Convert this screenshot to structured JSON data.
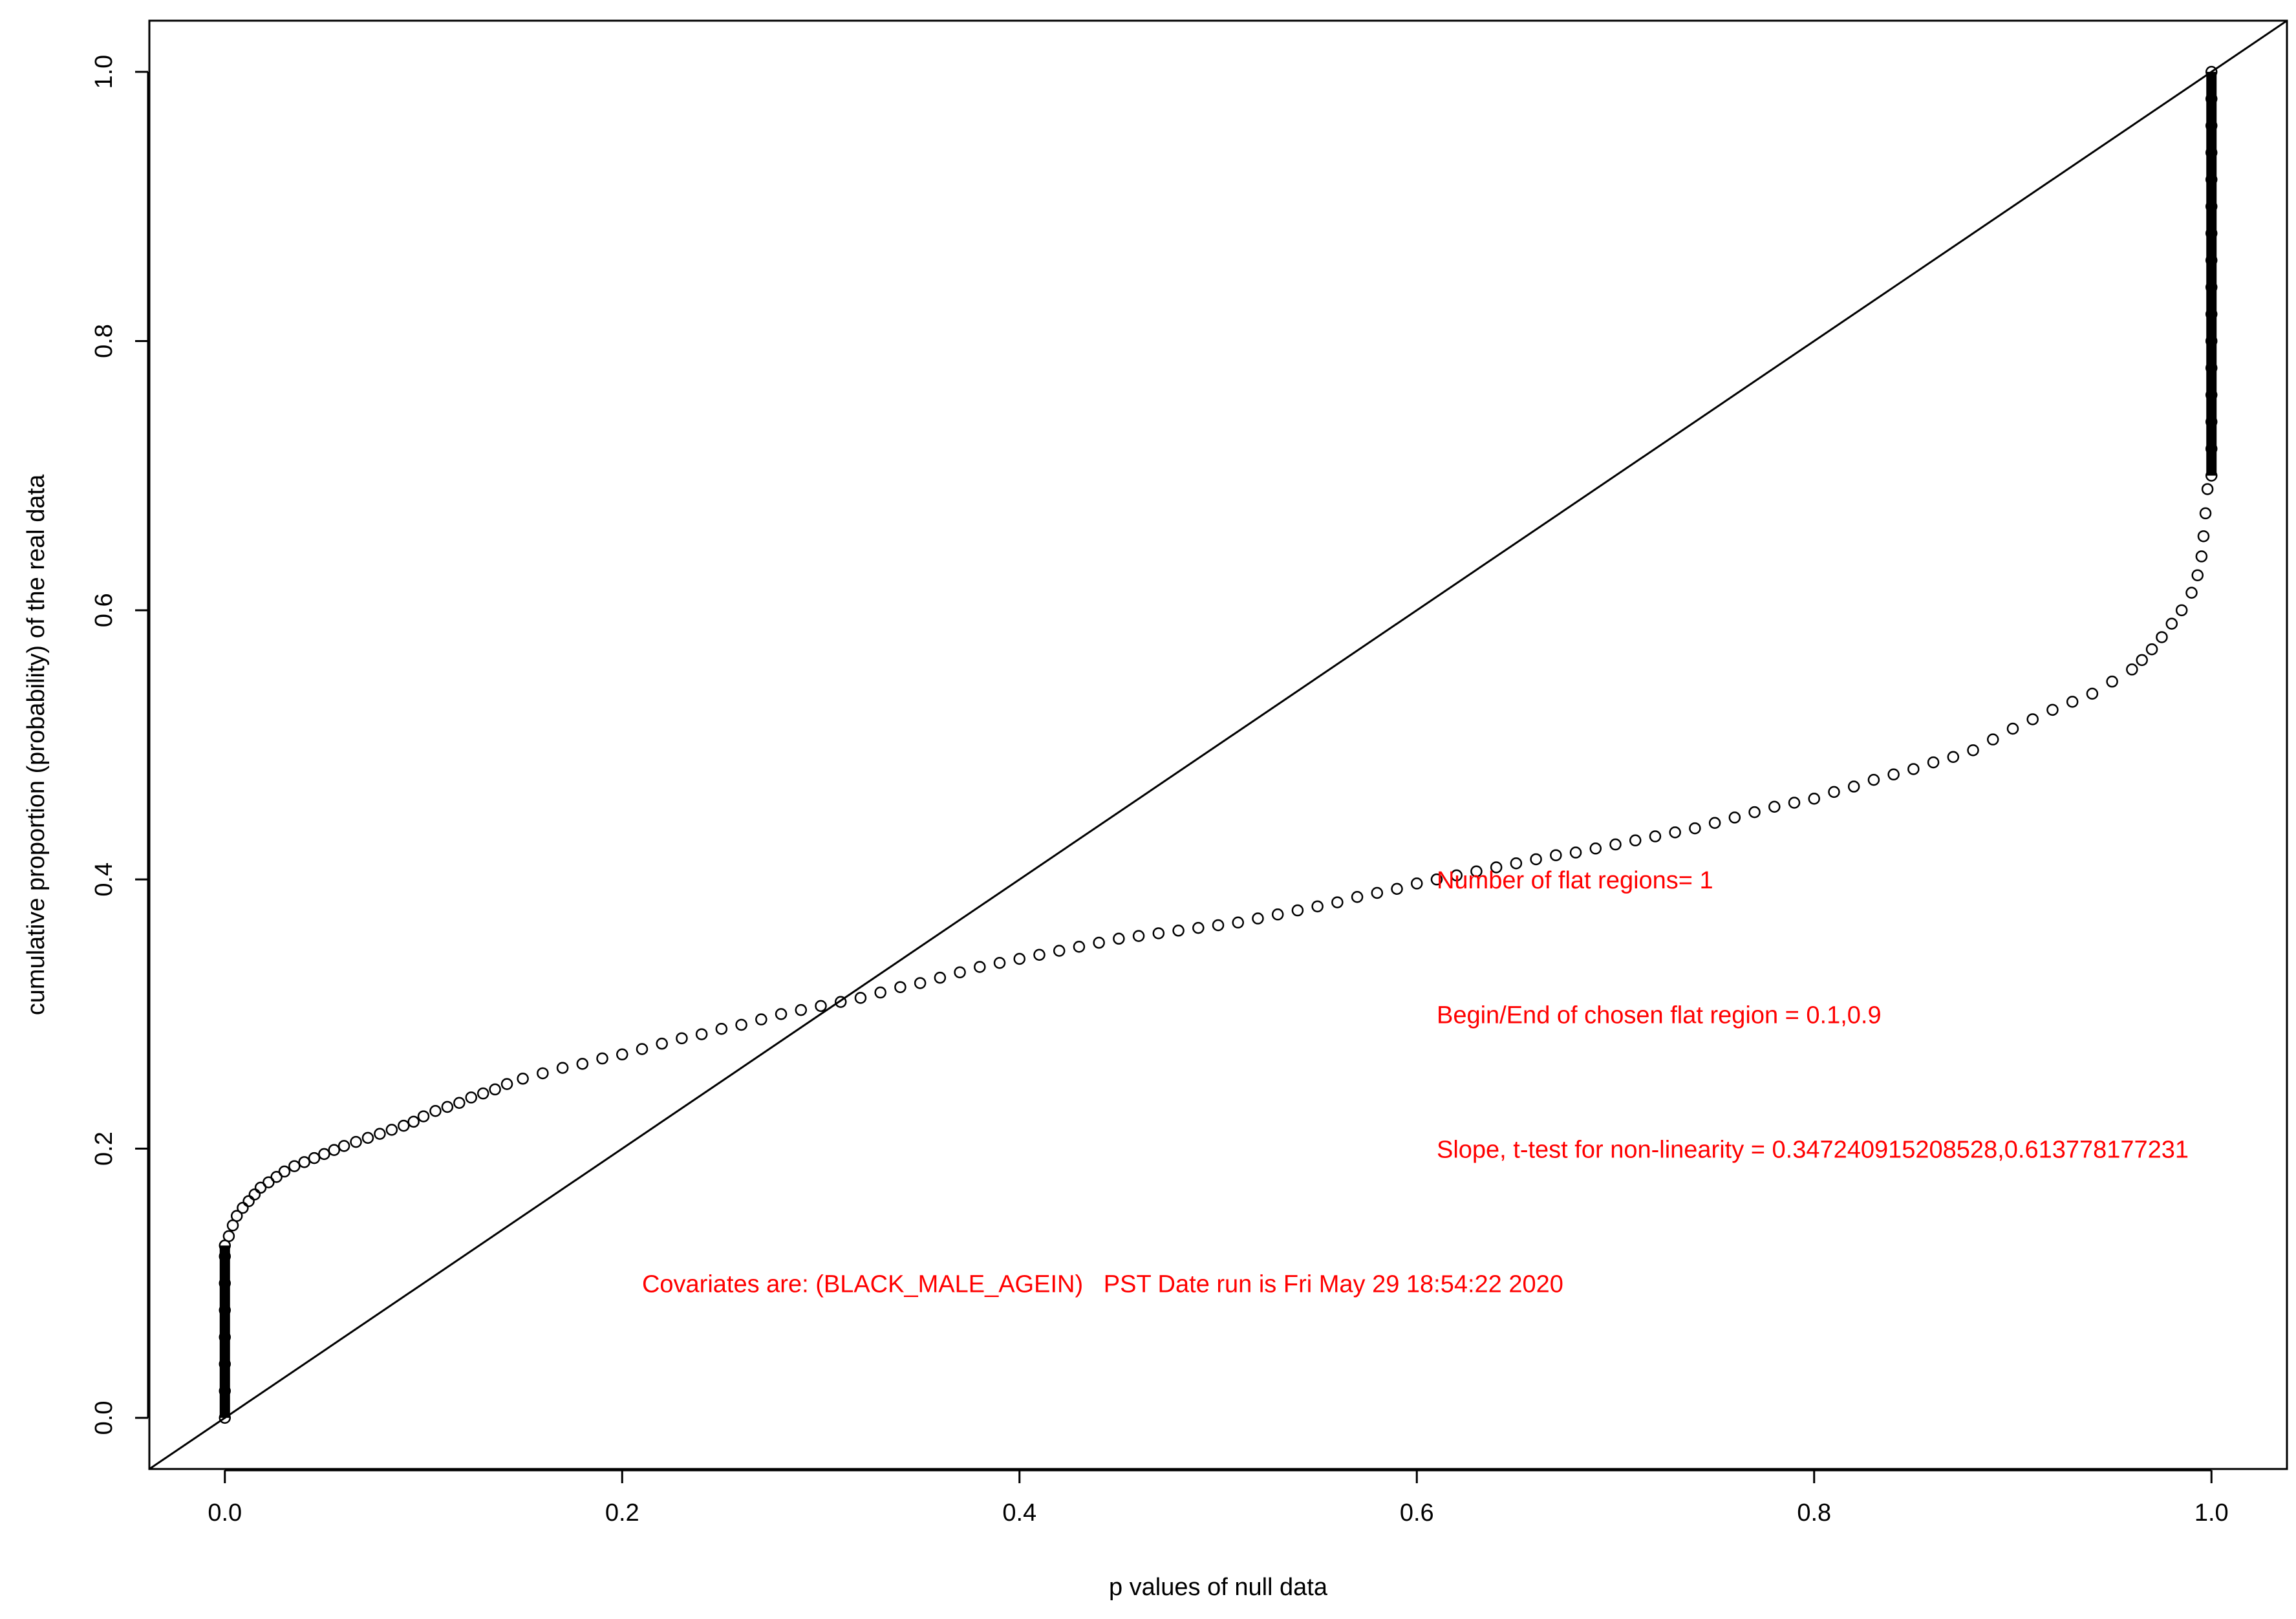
{
  "chart_data": {
    "type": "scatter",
    "title": "",
    "xlabel": "p values of null data",
    "ylabel": "cumulative proportion (probability) of the real data",
    "xlim": [
      -0.038,
      1.038
    ],
    "ylim": [
      -0.038,
      1.038
    ],
    "x_ticks": [
      "0.0",
      "0.2",
      "0.4",
      "0.6",
      "0.8",
      "1.0"
    ],
    "y_ticks": [
      "0.0",
      "0.2",
      "0.4",
      "0.6",
      "0.8",
      "1.0"
    ],
    "grid": false,
    "reference_line": {
      "from": [
        0,
        0
      ],
      "to": [
        1,
        1
      ]
    },
    "series": [
      {
        "points": [
          [
            0.0,
            0.0
          ],
          [
            0.0,
            0.02
          ],
          [
            0.0,
            0.04
          ],
          [
            0.0,
            0.06
          ],
          [
            0.0,
            0.08
          ],
          [
            0.0,
            0.1
          ],
          [
            0.0,
            0.12
          ],
          [
            0.0,
            0.128
          ],
          [
            0.002,
            0.135
          ],
          [
            0.004,
            0.143
          ],
          [
            0.006,
            0.15
          ],
          [
            0.009,
            0.156
          ],
          [
            0.012,
            0.161
          ],
          [
            0.015,
            0.166
          ],
          [
            0.018,
            0.171
          ],
          [
            0.022,
            0.175
          ],
          [
            0.026,
            0.179
          ],
          [
            0.03,
            0.183
          ],
          [
            0.035,
            0.187
          ],
          [
            0.04,
            0.19
          ],
          [
            0.045,
            0.193
          ],
          [
            0.05,
            0.196
          ],
          [
            0.055,
            0.199
          ],
          [
            0.06,
            0.202
          ],
          [
            0.066,
            0.205
          ],
          [
            0.072,
            0.208
          ],
          [
            0.078,
            0.211
          ],
          [
            0.084,
            0.214
          ],
          [
            0.09,
            0.217
          ],
          [
            0.095,
            0.22
          ],
          [
            0.1,
            0.224
          ],
          [
            0.106,
            0.228
          ],
          [
            0.112,
            0.231
          ],
          [
            0.118,
            0.234
          ],
          [
            0.124,
            0.238
          ],
          [
            0.13,
            0.241
          ],
          [
            0.136,
            0.244
          ],
          [
            0.142,
            0.248
          ],
          [
            0.15,
            0.252
          ],
          [
            0.16,
            0.256
          ],
          [
            0.17,
            0.26
          ],
          [
            0.18,
            0.263
          ],
          [
            0.19,
            0.267
          ],
          [
            0.2,
            0.27
          ],
          [
            0.21,
            0.274
          ],
          [
            0.22,
            0.278
          ],
          [
            0.23,
            0.282
          ],
          [
            0.24,
            0.285
          ],
          [
            0.25,
            0.289
          ],
          [
            0.26,
            0.292
          ],
          [
            0.27,
            0.296
          ],
          [
            0.28,
            0.3
          ],
          [
            0.29,
            0.303
          ],
          [
            0.3,
            0.306
          ],
          [
            0.31,
            0.309
          ],
          [
            0.32,
            0.312
          ],
          [
            0.33,
            0.316
          ],
          [
            0.34,
            0.32
          ],
          [
            0.35,
            0.323
          ],
          [
            0.36,
            0.327
          ],
          [
            0.37,
            0.331
          ],
          [
            0.38,
            0.335
          ],
          [
            0.39,
            0.338
          ],
          [
            0.4,
            0.341
          ],
          [
            0.41,
            0.344
          ],
          [
            0.42,
            0.347
          ],
          [
            0.43,
            0.35
          ],
          [
            0.44,
            0.353
          ],
          [
            0.45,
            0.356
          ],
          [
            0.46,
            0.358
          ],
          [
            0.47,
            0.36
          ],
          [
            0.48,
            0.362
          ],
          [
            0.49,
            0.364
          ],
          [
            0.5,
            0.366
          ],
          [
            0.51,
            0.368
          ],
          [
            0.52,
            0.371
          ],
          [
            0.53,
            0.374
          ],
          [
            0.54,
            0.377
          ],
          [
            0.55,
            0.38
          ],
          [
            0.56,
            0.383
          ],
          [
            0.57,
            0.387
          ],
          [
            0.58,
            0.39
          ],
          [
            0.59,
            0.393
          ],
          [
            0.6,
            0.397
          ],
          [
            0.61,
            0.4
          ],
          [
            0.62,
            0.403
          ],
          [
            0.63,
            0.406
          ],
          [
            0.64,
            0.409
          ],
          [
            0.65,
            0.412
          ],
          [
            0.66,
            0.415
          ],
          [
            0.67,
            0.418
          ],
          [
            0.68,
            0.42
          ],
          [
            0.69,
            0.423
          ],
          [
            0.7,
            0.426
          ],
          [
            0.71,
            0.429
          ],
          [
            0.72,
            0.432
          ],
          [
            0.73,
            0.435
          ],
          [
            0.74,
            0.438
          ],
          [
            0.75,
            0.442
          ],
          [
            0.76,
            0.446
          ],
          [
            0.77,
            0.45
          ],
          [
            0.78,
            0.454
          ],
          [
            0.79,
            0.457
          ],
          [
            0.8,
            0.46
          ],
          [
            0.81,
            0.465
          ],
          [
            0.82,
            0.469
          ],
          [
            0.83,
            0.474
          ],
          [
            0.84,
            0.478
          ],
          [
            0.85,
            0.482
          ],
          [
            0.86,
            0.487
          ],
          [
            0.87,
            0.491
          ],
          [
            0.88,
            0.496
          ],
          [
            0.89,
            0.504
          ],
          [
            0.9,
            0.512
          ],
          [
            0.91,
            0.519
          ],
          [
            0.92,
            0.526
          ],
          [
            0.93,
            0.532
          ],
          [
            0.94,
            0.538
          ],
          [
            0.95,
            0.547
          ],
          [
            0.96,
            0.556
          ],
          [
            0.965,
            0.563
          ],
          [
            0.97,
            0.571
          ],
          [
            0.975,
            0.58
          ],
          [
            0.98,
            0.59
          ],
          [
            0.985,
            0.6
          ],
          [
            0.99,
            0.613
          ],
          [
            0.993,
            0.626
          ],
          [
            0.995,
            0.64
          ],
          [
            0.996,
            0.655
          ],
          [
            0.997,
            0.672
          ],
          [
            0.998,
            0.69
          ],
          [
            1.0,
            0.7
          ],
          [
            1.0,
            0.72
          ],
          [
            1.0,
            0.74
          ],
          [
            1.0,
            0.76
          ],
          [
            1.0,
            0.78
          ],
          [
            1.0,
            0.8
          ],
          [
            1.0,
            0.82
          ],
          [
            1.0,
            0.84
          ],
          [
            1.0,
            0.86
          ],
          [
            1.0,
            0.88
          ],
          [
            1.0,
            0.9
          ],
          [
            1.0,
            0.92
          ],
          [
            1.0,
            0.94
          ],
          [
            1.0,
            0.96
          ],
          [
            1.0,
            0.98
          ],
          [
            1.0,
            1.0
          ]
        ]
      }
    ],
    "annotations": [
      {
        "text": "Number of flat regions= 1",
        "x": 0.61,
        "y": 0.4
      },
      {
        "text": "Begin/End of chosen flat region = 0.1,0.9",
        "x": 0.61,
        "y": 0.3
      },
      {
        "text": "Slope, t-test for non-linearity = 0.347240915208528,0.613778177231",
        "x": 0.61,
        "y": 0.2
      },
      {
        "text": "Covariates are: (BLACK_MALE_AGEIN)   PST Date run is Fri May 29 18:54:22 2020",
        "x": 0.21,
        "y": 0.1
      }
    ],
    "annotation_color": "#ff0000",
    "marker": "open-circle",
    "line_color": "#000000"
  }
}
